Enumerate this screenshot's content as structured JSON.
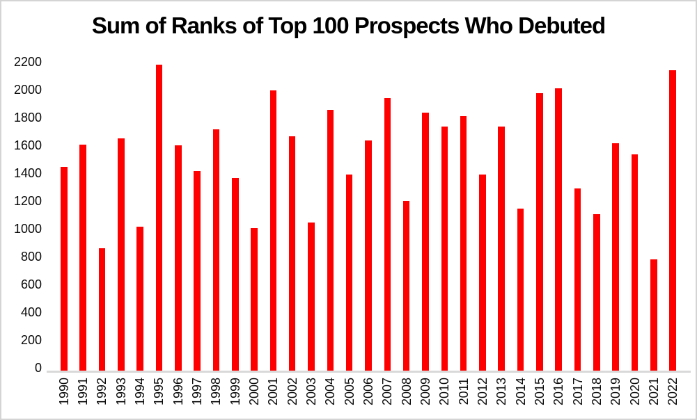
{
  "chart_data": {
    "type": "bar",
    "title": "Sum of Ranks of Top 100 Prospects Who Debuted",
    "categories": [
      "1990",
      "1991",
      "1992",
      "1993",
      "1994",
      "1995",
      "1996",
      "1997",
      "1998",
      "1999",
      "2000",
      "2001",
      "2002",
      "2003",
      "2004",
      "2005",
      "2006",
      "2007",
      "2008",
      "2009",
      "2010",
      "2011",
      "2012",
      "2013",
      "2014",
      "2015",
      "2016",
      "2017",
      "2018",
      "2019",
      "2020",
      "2021",
      "2022"
    ],
    "values": [
      1465,
      1625,
      880,
      1670,
      1035,
      2200,
      1620,
      1435,
      1735,
      1385,
      1025,
      2015,
      1685,
      1065,
      1875,
      1410,
      1655,
      1960,
      1220,
      1855,
      1755,
      1830,
      1410,
      1755,
      1165,
      1995,
      2030,
      1310,
      1125,
      1635,
      1555,
      800,
      2160
    ],
    "ylim": [
      0,
      2200
    ],
    "yticks": [
      0,
      200,
      400,
      600,
      800,
      1000,
      1200,
      1400,
      1600,
      1800,
      2000,
      2200
    ],
    "xlabel": "",
    "ylabel": "",
    "grid": false,
    "legend": false,
    "x_label_rotation": -90,
    "bar_color": "#FF0000",
    "axis_line_color": "#D9D9D9",
    "text_color": "#0A0A0A",
    "title_color": "#000000"
  }
}
